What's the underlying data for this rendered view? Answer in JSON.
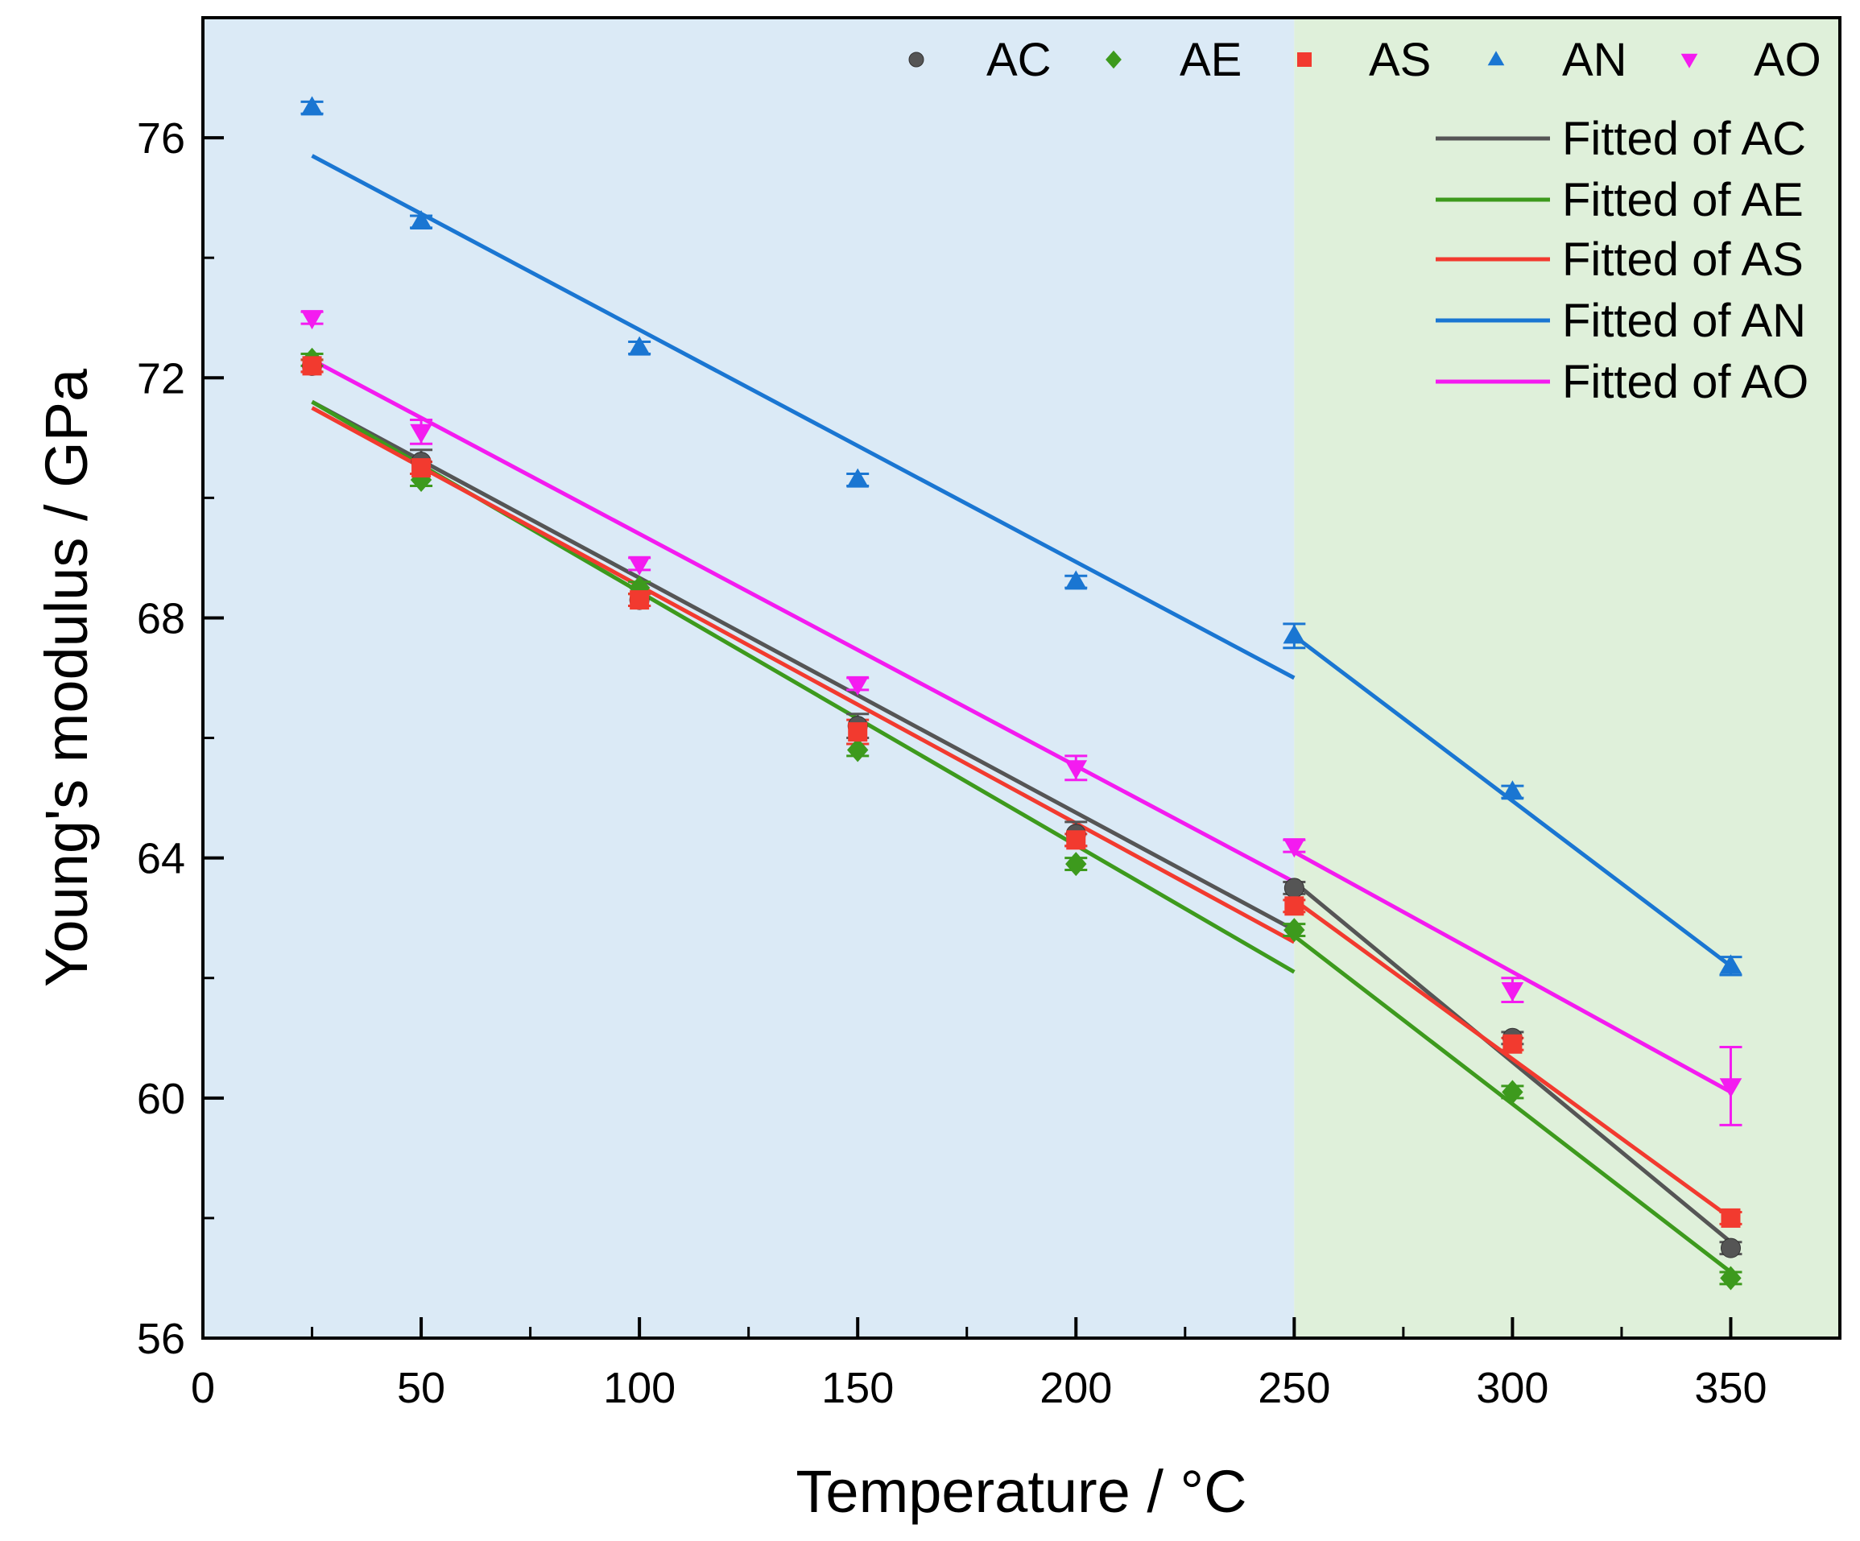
{
  "chart_data": {
    "type": "scatter",
    "xlabel": "Temperature / °C",
    "ylabel": "Young's modulus / GPa",
    "xlim": [
      0,
      375
    ],
    "ylim": [
      56,
      78
    ],
    "xticks": [
      0,
      50,
      100,
      150,
      200,
      250,
      300,
      350
    ],
    "yticks": [
      56,
      60,
      64,
      68,
      72,
      76
    ],
    "regions": [
      {
        "x_from": 0,
        "x_to": 250,
        "color": "#dbeaf6"
      },
      {
        "x_from": 250,
        "x_to": 375,
        "color": "#dff0da"
      }
    ],
    "legend_position": "top-right",
    "series": [
      {
        "name": "AC",
        "marker": "circle",
        "color": "#555555",
        "x": [
          25,
          50,
          100,
          150,
          200,
          250,
          300,
          350
        ],
        "y": [
          72.2,
          70.6,
          68.3,
          66.2,
          64.4,
          63.5,
          61.0,
          57.5
        ],
        "err": [
          0.1,
          0.2,
          0.1,
          0.2,
          0.2,
          0.1,
          0.1,
          0.1
        ]
      },
      {
        "name": "AE",
        "marker": "diamond",
        "color": "#3d9a1d",
        "x": [
          25,
          50,
          100,
          150,
          200,
          250,
          300,
          350
        ],
        "y": [
          72.3,
          70.3,
          68.5,
          65.8,
          63.9,
          62.8,
          60.1,
          57.0
        ],
        "err": [
          0.1,
          0.1,
          0.1,
          0.1,
          0.1,
          0.1,
          0.1,
          0.1
        ]
      },
      {
        "name": "AS",
        "marker": "square",
        "color": "#f23a2f",
        "x": [
          25,
          50,
          100,
          150,
          200,
          250,
          300,
          350
        ],
        "y": [
          72.2,
          70.5,
          68.3,
          66.1,
          64.3,
          63.2,
          60.9,
          58.0
        ],
        "err": [
          0.1,
          0.1,
          0.1,
          0.2,
          0.1,
          0.1,
          0.1,
          0.1
        ]
      },
      {
        "name": "AN",
        "marker": "triangle-up",
        "color": "#1a76d2",
        "x": [
          25,
          50,
          100,
          150,
          200,
          250,
          300,
          350
        ],
        "y": [
          76.5,
          74.6,
          72.5,
          70.3,
          68.6,
          67.7,
          65.1,
          62.2
        ],
        "err": [
          0.1,
          0.1,
          0.1,
          0.1,
          0.1,
          0.2,
          0.1,
          0.15
        ]
      },
      {
        "name": "AO",
        "marker": "triangle-down",
        "color": "#f41bf0",
        "x": [
          25,
          50,
          100,
          150,
          200,
          250,
          300,
          350
        ],
        "y": [
          73.0,
          71.1,
          68.9,
          66.9,
          65.5,
          64.2,
          61.8,
          60.2
        ],
        "err": [
          0.1,
          0.2,
          0.1,
          0.1,
          0.2,
          0.1,
          0.2,
          0.65
        ]
      }
    ],
    "fits": [
      {
        "name": "Fitted of AC",
        "color": "#555555",
        "segments": [
          [
            [
              25,
              71.6
            ],
            [
              250,
              62.8
            ]
          ],
          [
            [
              250,
              63.6
            ],
            [
              350,
              57.6
            ]
          ]
        ]
      },
      {
        "name": "Fitted of AE",
        "color": "#3d9a1d",
        "segments": [
          [
            [
              25,
              71.6
            ],
            [
              250,
              62.1
            ]
          ],
          [
            [
              250,
              62.7
            ],
            [
              350,
              57.1
            ]
          ]
        ]
      },
      {
        "name": "Fitted of AS",
        "color": "#f23a2f",
        "segments": [
          [
            [
              25,
              71.5
            ],
            [
              250,
              62.6
            ]
          ],
          [
            [
              250,
              63.3
            ],
            [
              350,
              58.0
            ]
          ]
        ]
      },
      {
        "name": "Fitted of AN",
        "color": "#1a76d2",
        "segments": [
          [
            [
              25,
              75.7
            ],
            [
              250,
              67.0
            ]
          ],
          [
            [
              250,
              67.7
            ],
            [
              350,
              62.2
            ]
          ]
        ]
      },
      {
        "name": "Fitted of AO",
        "color": "#f41bf0",
        "segments": [
          [
            [
              25,
              72.3
            ],
            [
              250,
              63.6
            ]
          ],
          [
            [
              250,
              64.1
            ],
            [
              350,
              60.1
            ]
          ]
        ]
      }
    ]
  }
}
